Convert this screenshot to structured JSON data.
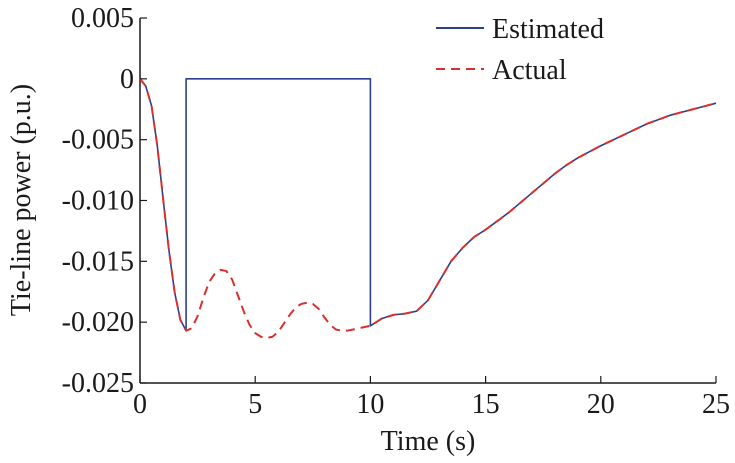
{
  "chart_data": {
    "type": "line",
    "title": "",
    "xlabel": "Time (s)",
    "ylabel": "Tie-line power (p.u.)",
    "xlim": [
      0,
      25
    ],
    "ylim": [
      -0.025,
      0.005
    ],
    "x_ticks": [
      0,
      5,
      10,
      15,
      20,
      25
    ],
    "x_tick_labels": [
      "0",
      "5",
      "10",
      "15",
      "20",
      "25"
    ],
    "y_ticks": [
      0.005,
      0,
      -0.005,
      -0.01,
      -0.015,
      -0.02,
      -0.025
    ],
    "y_tick_labels": [
      "0.005",
      "0",
      "-0.005",
      "-0.010",
      "-0.015",
      "-0.020",
      "-0.025"
    ],
    "grid": false,
    "legend_position": "top-right",
    "series": [
      {
        "name": "Estimated",
        "color": "#2b3f8f",
        "style": "solid",
        "points": [
          [
            0,
            0
          ],
          [
            0.25,
            -0.0006
          ],
          [
            0.5,
            -0.0022
          ],
          [
            0.75,
            -0.0055
          ],
          [
            1.0,
            -0.0098
          ],
          [
            1.25,
            -0.014
          ],
          [
            1.5,
            -0.0175
          ],
          [
            1.75,
            -0.0198
          ],
          [
            2.0,
            -0.0207
          ],
          [
            2.0,
            0
          ],
          [
            10.0,
            0
          ],
          [
            10.0,
            -0.0203
          ],
          [
            10.5,
            -0.0197
          ],
          [
            11.0,
            -0.0194
          ],
          [
            11.5,
            -0.0193
          ],
          [
            12.0,
            -0.0191
          ],
          [
            12.5,
            -0.0182
          ],
          [
            13.0,
            -0.0166
          ],
          [
            13.5,
            -0.015
          ],
          [
            14.0,
            -0.0139
          ],
          [
            14.5,
            -0.013
          ],
          [
            15.0,
            -0.0124
          ],
          [
            15.5,
            -0.0117
          ],
          [
            16.0,
            -0.011
          ],
          [
            16.5,
            -0.0102
          ],
          [
            17.0,
            -0.0094
          ],
          [
            17.5,
            -0.0086
          ],
          [
            18.0,
            -0.0078
          ],
          [
            18.5,
            -0.0071
          ],
          [
            19.0,
            -0.0065
          ],
          [
            19.5,
            -0.006
          ],
          [
            20.0,
            -0.0055
          ],
          [
            21.0,
            -0.0046
          ],
          [
            22.0,
            -0.0037
          ],
          [
            23.0,
            -0.003
          ],
          [
            24.0,
            -0.0025
          ],
          [
            25.0,
            -0.002
          ]
        ]
      },
      {
        "name": "Actual",
        "color": "#d9302c",
        "style": "dashed",
        "points": [
          [
            0,
            0
          ],
          [
            0.25,
            -0.0006
          ],
          [
            0.5,
            -0.0022
          ],
          [
            0.75,
            -0.0055
          ],
          [
            1.0,
            -0.0098
          ],
          [
            1.25,
            -0.014
          ],
          [
            1.5,
            -0.0175
          ],
          [
            1.75,
            -0.0198
          ],
          [
            2.0,
            -0.0207
          ],
          [
            2.25,
            -0.0205
          ],
          [
            2.5,
            -0.0195
          ],
          [
            2.75,
            -0.018
          ],
          [
            3.0,
            -0.0167
          ],
          [
            3.25,
            -0.016
          ],
          [
            3.5,
            -0.0157
          ],
          [
            3.75,
            -0.0158
          ],
          [
            4.0,
            -0.0165
          ],
          [
            4.25,
            -0.0178
          ],
          [
            4.5,
            -0.0191
          ],
          [
            4.75,
            -0.0202
          ],
          [
            5.0,
            -0.0209
          ],
          [
            5.25,
            -0.0212
          ],
          [
            5.5,
            -0.0213
          ],
          [
            5.75,
            -0.0212
          ],
          [
            6.0,
            -0.0208
          ],
          [
            6.25,
            -0.0201
          ],
          [
            6.5,
            -0.0194
          ],
          [
            6.75,
            -0.0188
          ],
          [
            7.0,
            -0.0185
          ],
          [
            7.25,
            -0.0184
          ],
          [
            7.5,
            -0.0185
          ],
          [
            7.75,
            -0.0189
          ],
          [
            8.0,
            -0.0196
          ],
          [
            8.25,
            -0.0202
          ],
          [
            8.5,
            -0.0206
          ],
          [
            8.75,
            -0.0207
          ],
          [
            9.0,
            -0.0207
          ],
          [
            9.25,
            -0.0206
          ],
          [
            9.5,
            -0.0205
          ],
          [
            9.75,
            -0.0204
          ],
          [
            10.0,
            -0.0203
          ],
          [
            10.5,
            -0.0197
          ],
          [
            11.0,
            -0.0194
          ],
          [
            11.5,
            -0.0193
          ],
          [
            12.0,
            -0.0191
          ],
          [
            12.5,
            -0.0182
          ],
          [
            13.0,
            -0.0166
          ],
          [
            13.5,
            -0.015
          ],
          [
            14.0,
            -0.0139
          ],
          [
            14.5,
            -0.013
          ],
          [
            15.0,
            -0.0124
          ],
          [
            15.5,
            -0.0117
          ],
          [
            16.0,
            -0.011
          ],
          [
            16.5,
            -0.0102
          ],
          [
            17.0,
            -0.0094
          ],
          [
            17.5,
            -0.0086
          ],
          [
            18.0,
            -0.0078
          ],
          [
            18.5,
            -0.0071
          ],
          [
            19.0,
            -0.0065
          ],
          [
            19.5,
            -0.006
          ],
          [
            20.0,
            -0.0055
          ],
          [
            21.0,
            -0.0046
          ],
          [
            22.0,
            -0.0037
          ],
          [
            23.0,
            -0.003
          ],
          [
            24.0,
            -0.0025
          ],
          [
            25.0,
            -0.002
          ]
        ]
      }
    ]
  }
}
